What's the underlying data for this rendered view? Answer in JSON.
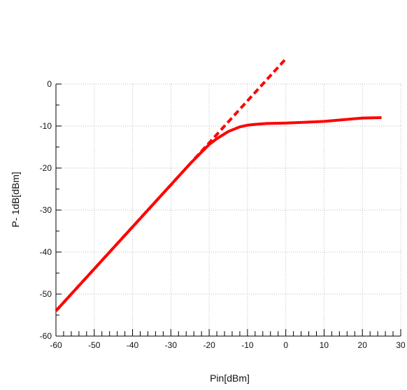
{
  "chart_data": {
    "type": "line",
    "title": "",
    "xlabel": "Pin[dBm]",
    "ylabel": "P- 1dB[dBm]",
    "xlim": [
      -60,
      30
    ],
    "ylim": [
      -60,
      0
    ],
    "x_ticks": [
      -60,
      -50,
      -40,
      -30,
      -20,
      -10,
      0,
      10,
      20,
      30
    ],
    "y_ticks": [
      0,
      -10,
      -20,
      -30,
      -40,
      -50,
      -60
    ],
    "x_tick_labels": [
      "-60",
      "-50",
      "-40",
      "-30",
      "-20",
      "-10",
      "0",
      "10",
      "20",
      "30"
    ],
    "y_tick_labels": [
      "0",
      "-10",
      "-20",
      "-30",
      "-40",
      "-50",
      "-60"
    ],
    "grid": true,
    "colors": {
      "series": "#ff0000",
      "grid": "#bbbbbb",
      "axis": "#000000"
    },
    "series": [
      {
        "style": "solid",
        "x": [
          -60,
          -50,
          -40,
          -30,
          -25,
          -22,
          -20,
          -18,
          -15,
          -12,
          -10,
          -8,
          -5,
          0,
          5,
          10,
          15,
          20,
          25
        ],
        "y": [
          -54,
          -44,
          -34,
          -24,
          -19,
          -16.2,
          -14.4,
          -13,
          -11.3,
          -10.2,
          -9.8,
          -9.6,
          -9.4,
          -9.3,
          -9.1,
          -8.9,
          -8.5,
          -8.1,
          -8.0
        ]
      },
      {
        "style": "dashed",
        "x": [
          -60,
          0
        ],
        "y": [
          -54,
          6
        ]
      }
    ]
  }
}
